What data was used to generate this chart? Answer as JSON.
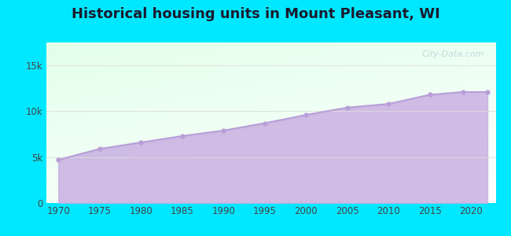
{
  "title": "Historical housing units in Mount Pleasant, WI",
  "title_fontsize": 13,
  "title_fontweight": "bold",
  "background_color": "#00e8ff",
  "fill_color": "#c9afe2",
  "fill_alpha": 0.85,
  "line_color": "#b89fd8",
  "line_width": 1.5,
  "marker": "o",
  "marker_size": 3.5,
  "marker_color": "#b89fd8",
  "years": [
    1970,
    1975,
    1980,
    1985,
    1990,
    1995,
    2000,
    2005,
    2010,
    2015,
    2019,
    2022
  ],
  "values": [
    4700,
    5900,
    6600,
    7300,
    7900,
    8700,
    9600,
    10400,
    10800,
    11800,
    12100,
    12100
  ],
  "ylim": [
    0,
    17500
  ],
  "yticks": [
    0,
    5000,
    10000,
    15000
  ],
  "ytick_labels": [
    "0",
    "5k",
    "10k",
    "15k"
  ],
  "xticks": [
    1970,
    1975,
    1980,
    1985,
    1990,
    1995,
    2000,
    2005,
    2010,
    2015,
    2020
  ],
  "grid_color": "#dddddd",
  "watermark_text": "City-Data.com",
  "watermark_color": "#99bbcc",
  "watermark_alpha": 0.55,
  "tick_label_color": "#444444",
  "tick_fontsize": 8.5,
  "xlim_left": 1968.5,
  "xlim_right": 2023
}
